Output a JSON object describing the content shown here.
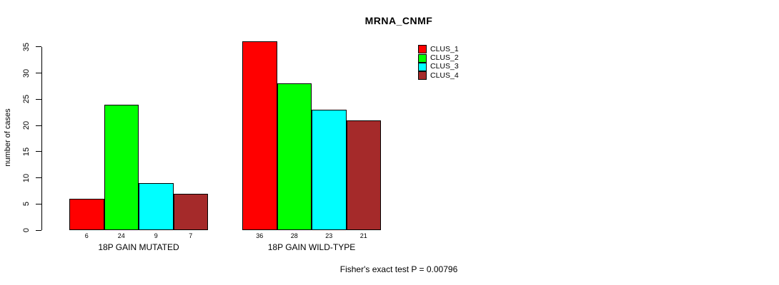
{
  "title": "MRNA_CNMF",
  "footer": "Fisher's exact test P = 0.00796",
  "chart_data": {
    "type": "bar",
    "title": "MRNA_CNMF",
    "xlabel": "",
    "ylabel": "number of cases",
    "ylim": [
      0,
      35
    ],
    "yticks": [
      0,
      5,
      10,
      15,
      20,
      25,
      30,
      35
    ],
    "grid": false,
    "legend_position": "top-right",
    "categories": [
      "18P GAIN MUTATED",
      "18P GAIN WILD-TYPE"
    ],
    "series": [
      {
        "name": "CLUS_1",
        "color": "#ff0000",
        "values": [
          6,
          36
        ]
      },
      {
        "name": "CLUS_2",
        "color": "#00ff00",
        "values": [
          24,
          28
        ]
      },
      {
        "name": "CLUS_3",
        "color": "#00ffff",
        "values": [
          9,
          23
        ]
      },
      {
        "name": "CLUS_4",
        "color": "#a52a2a",
        "values": [
          7,
          21
        ]
      }
    ],
    "bar_value_labels": [
      [
        6,
        24,
        9,
        7
      ],
      [
        36,
        28,
        23,
        21
      ]
    ],
    "annotation": "Fisher's exact test P = 0.00796"
  }
}
